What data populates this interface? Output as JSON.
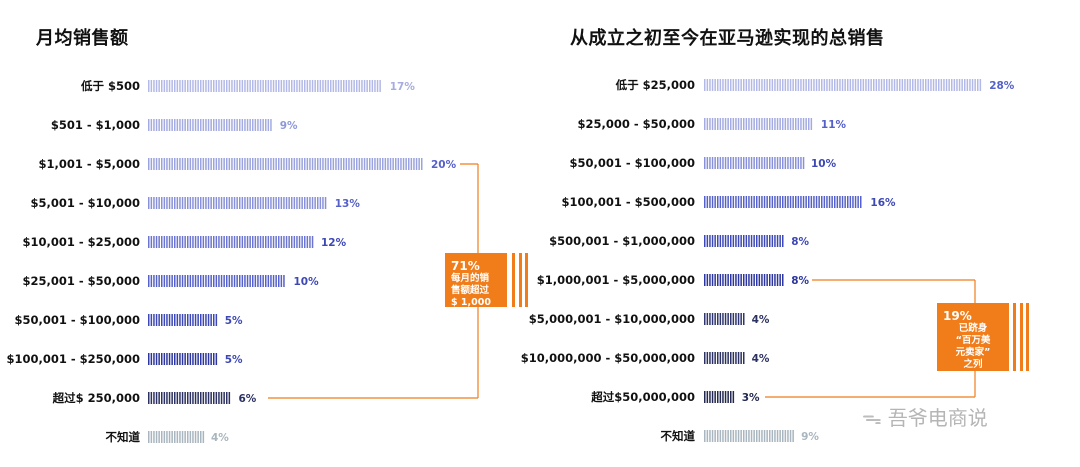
{
  "chart_data": [
    {
      "type": "bar",
      "title": "月均销售额",
      "categories": [
        "低于 $500",
        "$501 - $1,000",
        "$1,001 - $5,000",
        "$5,001 - $10,000",
        "$10,001 - $25,000",
        "$25,001 - $50,000",
        "$50,001 - $100,000",
        "$100,001 - $250,000",
        "超过$ 250,000",
        "不知道"
      ],
      "values": [
        17,
        9,
        20,
        13,
        12,
        10,
        5,
        5,
        6,
        4
      ],
      "value_labels": [
        "17%",
        "9%",
        "20%",
        "13%",
        "12%",
        "10%",
        "5%",
        "5%",
        "6%",
        "4%"
      ],
      "bar_colors": [
        "#b3b9e6",
        "#a3abe0",
        "#9aa3dd",
        "#8891d8",
        "#6b75cf",
        "#5560c8",
        "#3d48b5",
        "#2c369e",
        "#2b3160",
        "#a9b6bf"
      ],
      "label_colors": [
        "#a6acdf",
        "#8e97da",
        "#5560c8",
        "#5560c8",
        "#3d48b5",
        "#3d48b5",
        "#3d48b5",
        "#3d48b5",
        "#2b3160",
        "#a9b6bf"
      ],
      "xlabel": "",
      "ylabel": "",
      "callout": {
        "percent": "71%",
        "text": "每月的销\n售额超过\n$ 1,000"
      }
    },
    {
      "type": "bar",
      "title": "从成立之初至今在亚马逊实现的总销售",
      "categories": [
        "低于 $25,000",
        "$25,000 - $50,000",
        "$50,001 - $100,000",
        "$100,001 - $500,000",
        "$500,001 - $1,000,000",
        "$1,000,001 - $5,000,000",
        "$5,000,001 - $10,000,000",
        "$10,000,000 - $50,000,000",
        "超过$50,000,000",
        "不知道"
      ],
      "values": [
        28,
        11,
        10,
        16,
        8,
        8,
        4,
        4,
        3,
        9
      ],
      "value_labels": [
        "28%",
        "11%",
        "10%",
        "16%",
        "8%",
        "8%",
        "4%",
        "4%",
        "3%",
        "9%"
      ],
      "bar_colors": [
        "#b3b9e6",
        "#a3abe0",
        "#8891d8",
        "#5560c8",
        "#3d48b5",
        "#2c369e",
        "#2f356e",
        "#2b3160",
        "#22284f",
        "#a9b6bf"
      ],
      "label_colors": [
        "#5560c8",
        "#5560c8",
        "#3d48b5",
        "#3d48b5",
        "#3d48b5",
        "#2c369e",
        "#2b3160",
        "#2b3160",
        "#22284f",
        "#a9b6bf"
      ],
      "xlabel": "",
      "ylabel": "",
      "callout": {
        "percent": "19%",
        "text": "已跻身\n“百万美\n元卖家”\n之列"
      }
    }
  ],
  "accent_color": "#f07d1a",
  "watermark": "吾爷电商说"
}
